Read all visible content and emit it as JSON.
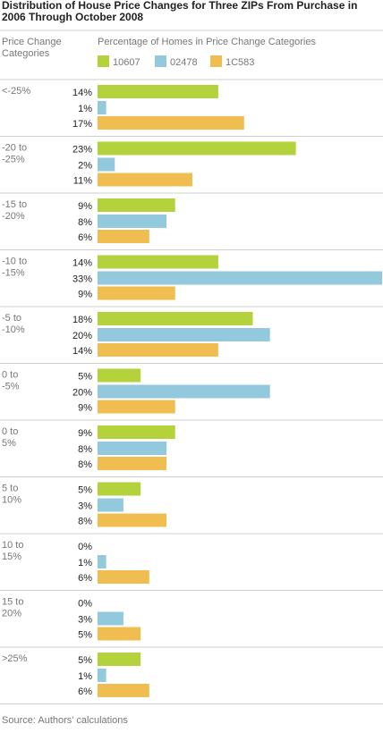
{
  "title": "Distribution of House Price Changes for Three ZIPs From Purchase in 2006 Through October 2008",
  "row_header": "Price Change Categories",
  "legend_header": "Percentage of Homes in Price Change Categories",
  "source": "Source:  Authors' calculations",
  "colors": {
    "10607": "#b3d23b",
    "02478": "#92c9dc",
    "1C583": "#f0be50"
  },
  "chart_data": {
    "type": "bar",
    "orientation": "horizontal",
    "title": "Distribution of House Price Changes for Three ZIPs From Purchase in 2006 Through October 2008",
    "ylabel": "Price Change Categories",
    "xlabel": "Percentage of Homes in Price Change Categories",
    "categories": [
      "<-25%",
      "-20 to -25%",
      "-15 to -20%",
      "-10 to -15%",
      "-5 to -10%",
      "0 to -5%",
      "0 to 5%",
      "5 to 10%",
      "10 to 15%",
      "15 to 20%",
      ">25%"
    ],
    "category_lines": [
      [
        "<-25%"
      ],
      [
        "-20 to",
        "-25%"
      ],
      [
        "-15 to",
        "-20%"
      ],
      [
        "-10 to",
        "-15%"
      ],
      [
        "-5 to",
        "-10%"
      ],
      [
        "0 to",
        "-5%"
      ],
      [
        "0 to",
        "5%"
      ],
      [
        "5 to",
        "10%"
      ],
      [
        "10 to",
        "15%"
      ],
      [
        "15 to",
        "20%"
      ],
      [
        ">25%"
      ]
    ],
    "series": [
      {
        "name": "10607",
        "values": [
          14,
          23,
          9,
          14,
          18,
          5,
          9,
          5,
          0,
          0,
          5
        ]
      },
      {
        "name": "02478",
        "values": [
          1,
          2,
          8,
          33,
          20,
          20,
          8,
          3,
          1,
          3,
          1
        ]
      },
      {
        "name": "1C583",
        "values": [
          17,
          11,
          6,
          9,
          14,
          9,
          8,
          8,
          6,
          5,
          6
        ]
      }
    ],
    "value_suffix": "%",
    "xlim": [
      0,
      33
    ],
    "grid": false,
    "legend": "top"
  }
}
